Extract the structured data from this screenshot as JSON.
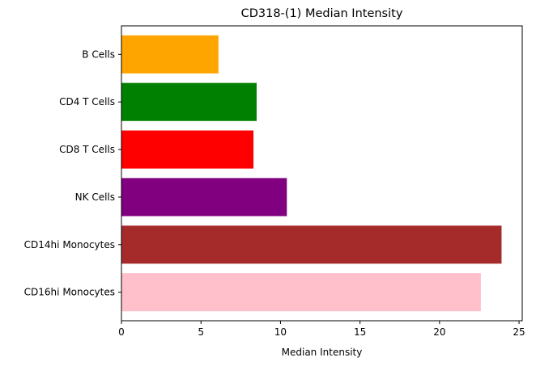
{
  "chart_data": {
    "type": "bar",
    "orientation": "horizontal",
    "title": "CD318-(1) Median Intensity",
    "xlabel": "Median Intensity",
    "ylabel": "",
    "xlim": [
      0,
      25.2
    ],
    "xticks": [
      0,
      5,
      10,
      15,
      20,
      25
    ],
    "grid": false,
    "categories": [
      "B Cells",
      "CD4 T Cells",
      "CD8 T Cells",
      "NK Cells",
      "CD14hi Monocytes",
      "CD16hi Monocytes"
    ],
    "values": [
      6.1,
      8.5,
      8.3,
      10.4,
      23.9,
      22.6
    ],
    "colors": [
      "#ffa500",
      "#008000",
      "#ff0000",
      "#800080",
      "#a52a2a",
      "#ffc0cb"
    ]
  }
}
